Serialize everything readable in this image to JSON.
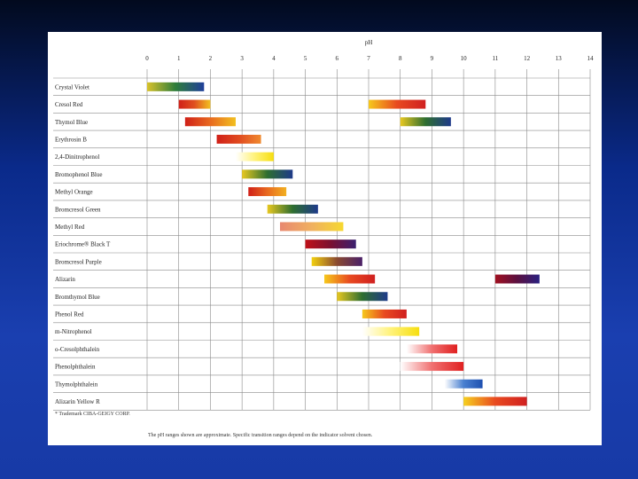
{
  "chart_data": {
    "type": "range-bar",
    "xlabel": "pH",
    "xlim": [
      0,
      14
    ],
    "ticks": [
      0,
      1,
      2,
      3,
      4,
      5,
      6,
      7,
      8,
      9,
      10,
      11,
      12,
      13,
      14
    ],
    "indicators": [
      {
        "name": "Crystal Violet",
        "ranges": [
          {
            "from": 0.0,
            "to": 1.8,
            "colors": [
              "#d8c22a",
              "#2e7d3a",
              "#1f3f9a"
            ]
          }
        ]
      },
      {
        "name": "Cresol Red",
        "ranges": [
          {
            "from": 1.0,
            "to": 2.0,
            "colors": [
              "#d02018",
              "#e05020",
              "#f2c020"
            ]
          },
          {
            "from": 7.0,
            "to": 8.8,
            "colors": [
              "#f6c81c",
              "#e84a20",
              "#d02020"
            ]
          }
        ]
      },
      {
        "name": "Thymol Blue",
        "ranges": [
          {
            "from": 1.2,
            "to": 2.8,
            "colors": [
              "#d02018",
              "#e86a20",
              "#f2c020"
            ]
          },
          {
            "from": 8.0,
            "to": 9.6,
            "colors": [
              "#e8c820",
              "#2e6e30",
              "#1e3a8a"
            ]
          }
        ]
      },
      {
        "name": "Erythrosin B",
        "ranges": [
          {
            "from": 2.2,
            "to": 3.6,
            "colors": [
              "#d02018",
              "#e04a20",
              "#f08a30"
            ]
          }
        ]
      },
      {
        "name": "2,4-Dinitrophenol",
        "ranges": [
          {
            "from": 2.8,
            "to": 4.0,
            "colors": [
              "#ffffff",
              "#fff27a",
              "#f6de10"
            ]
          }
        ]
      },
      {
        "name": "Bromophenol Blue",
        "ranges": [
          {
            "from": 3.0,
            "to": 4.6,
            "colors": [
              "#e8c820",
              "#2e6e30",
              "#1e3a8a"
            ]
          }
        ]
      },
      {
        "name": "Methyl Orange",
        "ranges": [
          {
            "from": 3.2,
            "to": 4.4,
            "colors": [
              "#d02018",
              "#e86a20",
              "#f2b020"
            ]
          }
        ]
      },
      {
        "name": "Bromcresol Green",
        "ranges": [
          {
            "from": 3.8,
            "to": 5.4,
            "colors": [
              "#e8c820",
              "#2e6e30",
              "#1e3a8a"
            ]
          }
        ]
      },
      {
        "name": "Methyl Red",
        "ranges": [
          {
            "from": 4.2,
            "to": 6.2,
            "colors": [
              "#e88870",
              "#f0b060",
              "#f6d830"
            ]
          }
        ]
      },
      {
        "name": "Eriochrome® Black T",
        "ranges": [
          {
            "from": 5.0,
            "to": 6.6,
            "colors": [
              "#c01018",
              "#7a1030",
              "#3a2070"
            ]
          }
        ]
      },
      {
        "name": "Bromcresol Purple",
        "ranges": [
          {
            "from": 5.2,
            "to": 6.8,
            "colors": [
              "#f2d010",
              "#8a4a30",
              "#4a2068"
            ]
          }
        ]
      },
      {
        "name": "Alizarin",
        "ranges": [
          {
            "from": 5.6,
            "to": 7.2,
            "colors": [
              "#f6c81c",
              "#e84a20",
              "#d02020"
            ]
          },
          {
            "from": 11.0,
            "to": 12.4,
            "colors": [
              "#a01020",
              "#5a1040",
              "#2a2080"
            ]
          }
        ]
      },
      {
        "name": "Bromthymol Blue",
        "ranges": [
          {
            "from": 6.0,
            "to": 7.6,
            "colors": [
              "#e8c820",
              "#2e6e30",
              "#1e3a8a"
            ]
          }
        ]
      },
      {
        "name": "Phenol Red",
        "ranges": [
          {
            "from": 6.8,
            "to": 8.2,
            "colors": [
              "#f6c81c",
              "#e84a20",
              "#d02020"
            ]
          }
        ]
      },
      {
        "name": "m-Nitrophenol",
        "ranges": [
          {
            "from": 6.8,
            "to": 8.6,
            "colors": [
              "#ffffff",
              "#fff27a",
              "#f6de10"
            ]
          }
        ]
      },
      {
        "name": "o-Cresolphthalein",
        "ranges": [
          {
            "from": 8.2,
            "to": 9.8,
            "colors": [
              "#ffffff",
              "#f07070",
              "#e02020"
            ]
          }
        ]
      },
      {
        "name": "Phenolphthalein",
        "ranges": [
          {
            "from": 8.0,
            "to": 10.0,
            "colors": [
              "#ffffff",
              "#f07070",
              "#e02020"
            ]
          }
        ]
      },
      {
        "name": "Thymolphthalein",
        "ranges": [
          {
            "from": 9.4,
            "to": 10.6,
            "colors": [
              "#ffffff",
              "#4a80d0",
              "#1e50b0"
            ]
          }
        ]
      },
      {
        "name": "Alizarin Yellow R",
        "ranges": [
          {
            "from": 10.0,
            "to": 12.0,
            "colors": [
              "#f6d020",
              "#e84a20",
              "#d02020"
            ]
          }
        ]
      }
    ],
    "grid": true,
    "legend": "none"
  },
  "footnotes": {
    "trademark": "* Trademark CIBA-GEIGY CORP.",
    "note": "The pH ranges shown are approximate. Specific transition ranges depend on the indicator solvent chosen."
  }
}
